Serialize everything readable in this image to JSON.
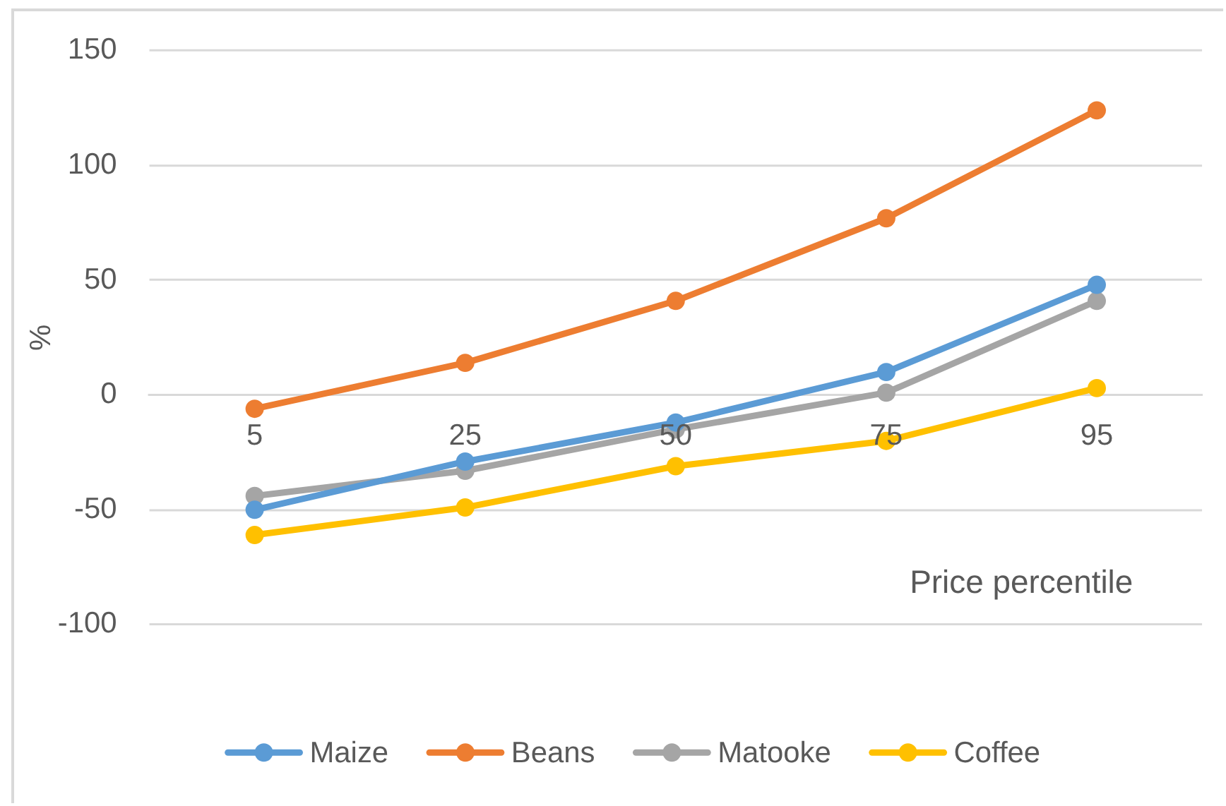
{
  "chart_data": {
    "type": "line",
    "xlabel": "Price percentile",
    "ylabel": "%",
    "categories": [
      "5",
      "25",
      "50",
      "75",
      "95"
    ],
    "series": [
      {
        "name": "Maize",
        "color": "#5b9bd5",
        "values": [
          -50,
          -29,
          -12,
          10,
          48
        ]
      },
      {
        "name": "Beans",
        "color": "#ed7d31",
        "values": [
          -6,
          14,
          41,
          77,
          124
        ]
      },
      {
        "name": "Matooke",
        "color": "#a5a5a5",
        "values": [
          -44,
          -33,
          -15,
          1,
          41
        ]
      },
      {
        "name": "Coffee",
        "color": "#ffc000",
        "values": [
          -61,
          -49,
          -31,
          -20,
          3
        ]
      }
    ],
    "ylim": [
      -100,
      150
    ],
    "yticks": [
      -100,
      -50,
      0,
      50,
      100,
      150
    ],
    "grid": "y",
    "legend": "bottom",
    "marker": "circle",
    "line_style": "solid"
  }
}
